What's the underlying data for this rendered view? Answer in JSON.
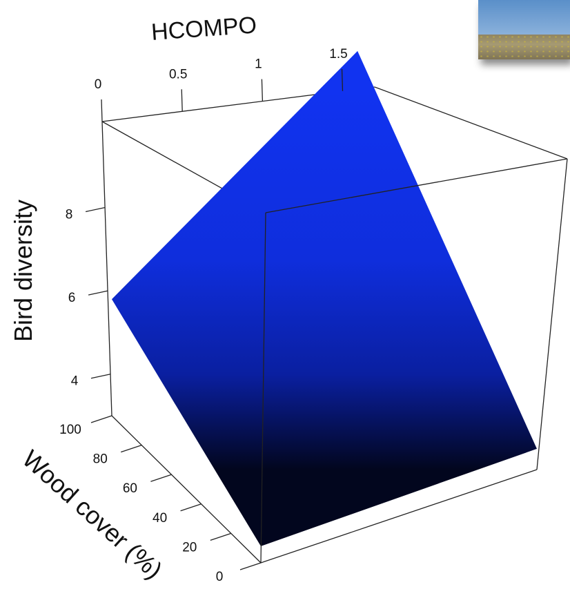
{
  "chart_data": {
    "type": "surface3d",
    "xlabel": "HCOMPO",
    "ylabel": "Bird diversity",
    "zlabel": "Wood cover (%)",
    "x_ticks": [
      0,
      0.5,
      1,
      1.5
    ],
    "x_tick_labels": [
      "0",
      "0.5",
      "1",
      "1.5"
    ],
    "y_ticks": [
      4,
      6,
      8
    ],
    "y_tick_labels": [
      "4",
      "6",
      "8"
    ],
    "z_ticks": [
      0,
      20,
      40,
      60,
      80,
      100
    ],
    "z_tick_labels": [
      "0",
      "20",
      "40",
      "60",
      "80",
      "100"
    ],
    "xlim": [
      0,
      1.9
    ],
    "ylim": [
      3,
      10
    ],
    "zlim": [
      0,
      100
    ],
    "surface_corners": [
      {
        "x": 0,
        "wood": 100,
        "bird": 5.8
      },
      {
        "x": 1.7,
        "wood": 100,
        "bird": 9.8
      },
      {
        "x": 1.9,
        "wood": 0,
        "bird": 3.5
      },
      {
        "x": 0,
        "wood": 0,
        "bird": 3.4
      }
    ],
    "surface_color": "#1133f0",
    "surface_shadow_color": "#02061e"
  }
}
